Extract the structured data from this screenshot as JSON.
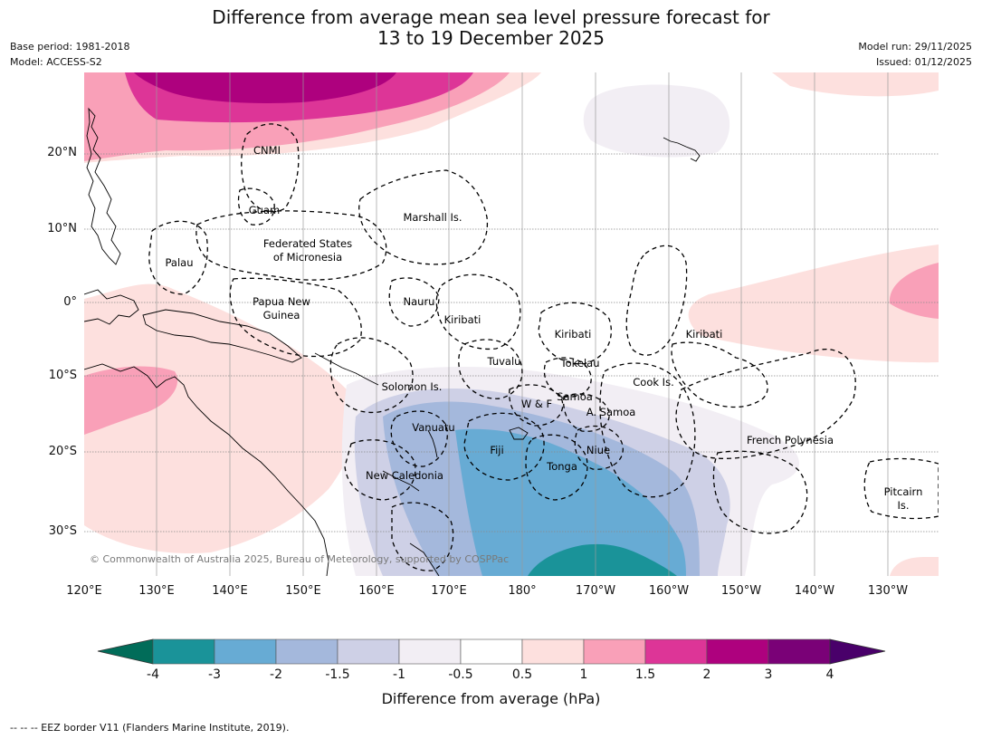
{
  "title_line1": "Difference from average mean sea level pressure forecast for",
  "title_line2": "13 to 19 December 2025",
  "base_period": "Base period: 1981-2018",
  "model": "Model: ACCESS-S2",
  "model_run": "Model run: 29/11/2025",
  "issued": "Issued: 01/12/2025",
  "copyright": "© Commonwealth of Australia 2025, Bureau of Meteorology, supported by COSPPac",
  "lat_labels": [
    "20°N",
    "10°N",
    "0°",
    "10°S",
    "20°S",
    "30°S"
  ],
  "lon_labels": [
    "120°E",
    "130°E",
    "140°E",
    "150°E",
    "160°E",
    "170°E",
    "180°",
    "170°W",
    "160°W",
    "150°W",
    "140°W",
    "130°W"
  ],
  "regions": {
    "cnmi": "CNMI",
    "guam": "Guam",
    "marshall": "Marshall Is.",
    "fsm_line1": "Federated States",
    "fsm_line2": "of Micronesia",
    "palau": "Palau",
    "png_line1": "Papua New",
    "png_line2": "Guinea",
    "nauru": "Nauru",
    "kiribati_west": "Kiribati",
    "kiribati_central": "Kiribati",
    "kiribati_east": "Kiribati",
    "tuvalu": "Tuvalu",
    "tokelau": "Tokelau",
    "cook": "Cook Is.",
    "solomon": "Solomon Is.",
    "w_f": "W & F",
    "samoa": "Samoa",
    "a_samoa": "A. Samoa",
    "vanuatu": "Vanuatu",
    "fiji": "Fiji",
    "niue": "Niue",
    "tonga": "Tonga",
    "french_polynesia": "French Polynesia",
    "new_caledonia": "New Caledonia",
    "pitcairn_line1": "Pitcairn",
    "pitcairn_line2": "Is."
  },
  "colorbar": {
    "ticks": [
      "-4",
      "-3",
      "-2",
      "-1.5",
      "-1",
      "-0.5",
      "0.5",
      "1",
      "1.5",
      "2",
      "3",
      "4"
    ],
    "colors": [
      "#1a9399",
      "#67abd4",
      "#a4b8dc",
      "#ced0e6",
      "#f2eef4",
      "#ffffff",
      "#fde0de",
      "#f9a0b8",
      "#dd3597",
      "#ae017e",
      "#7a0177"
    ],
    "under_color": "#016c59",
    "over_color": "#49006a",
    "label": "Difference from average (hPa)"
  },
  "footnote": "-- -- -- EEZ border V11 (Flanders Marine Institute, 2019)."
}
